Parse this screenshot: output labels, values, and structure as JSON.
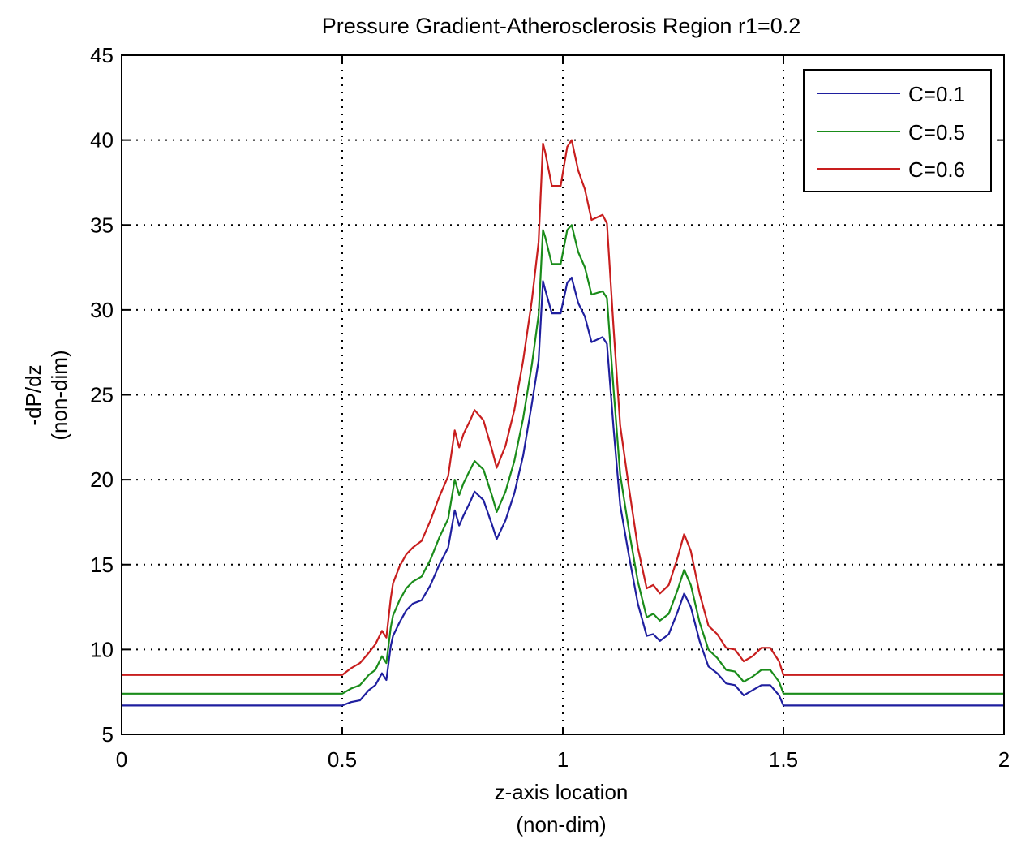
{
  "chart_data": {
    "type": "line",
    "title": "Pressure Gradient-Atherosclerosis Region r1=0.2",
    "xlabel": [
      "z-axis location",
      "(non-dim)"
    ],
    "ylabel": [
      "-dP/dz",
      "(non-dim)"
    ],
    "xlim": [
      0,
      2
    ],
    "ylim": [
      5,
      45
    ],
    "xticks": [
      0,
      0.5,
      1,
      1.5,
      2
    ],
    "xtick_labels": [
      "0",
      "0.5",
      "1",
      "1.5",
      "2"
    ],
    "yticks": [
      5,
      10,
      15,
      20,
      25,
      30,
      35,
      40,
      45
    ],
    "ytick_labels": [
      "5",
      "10",
      "15",
      "20",
      "25",
      "30",
      "35",
      "40",
      "45"
    ],
    "grid": true,
    "legend_position": "top-right",
    "series": [
      {
        "name": "C=0.1",
        "color": "#1f1f9f",
        "points": [
          [
            0,
            6.7
          ],
          [
            0.5,
            6.7
          ],
          [
            0.52,
            6.9
          ],
          [
            0.54,
            7.0
          ],
          [
            0.56,
            7.6
          ],
          [
            0.575,
            7.9
          ],
          [
            0.59,
            8.6
          ],
          [
            0.6,
            8.2
          ],
          [
            0.61,
            10.2
          ],
          [
            0.615,
            10.8
          ],
          [
            0.63,
            11.6
          ],
          [
            0.645,
            12.3
          ],
          [
            0.66,
            12.7
          ],
          [
            0.68,
            12.9
          ],
          [
            0.7,
            13.8
          ],
          [
            0.72,
            15.0
          ],
          [
            0.74,
            16.0
          ],
          [
            0.755,
            18.2
          ],
          [
            0.765,
            17.3
          ],
          [
            0.775,
            17.9
          ],
          [
            0.79,
            18.7
          ],
          [
            0.8,
            19.3
          ],
          [
            0.82,
            18.8
          ],
          [
            0.84,
            17.3
          ],
          [
            0.85,
            16.5
          ],
          [
            0.87,
            17.6
          ],
          [
            0.89,
            19.2
          ],
          [
            0.91,
            21.4
          ],
          [
            0.93,
            24.5
          ],
          [
            0.945,
            27.0
          ],
          [
            0.955,
            31.7
          ],
          [
            0.96,
            31.2
          ],
          [
            0.975,
            29.8
          ],
          [
            0.995,
            29.8
          ],
          [
            1.01,
            31.6
          ],
          [
            1.02,
            31.9
          ],
          [
            1.035,
            30.4
          ],
          [
            1.05,
            29.6
          ],
          [
            1.065,
            28.1
          ],
          [
            1.09,
            28.4
          ],
          [
            1.1,
            28.0
          ],
          [
            1.115,
            23.0
          ],
          [
            1.13,
            18.5
          ],
          [
            1.15,
            15.5
          ],
          [
            1.17,
            12.7
          ],
          [
            1.19,
            10.8
          ],
          [
            1.205,
            10.9
          ],
          [
            1.22,
            10.5
          ],
          [
            1.24,
            10.9
          ],
          [
            1.26,
            12.2
          ],
          [
            1.275,
            13.3
          ],
          [
            1.29,
            12.5
          ],
          [
            1.31,
            10.5
          ],
          [
            1.33,
            9.0
          ],
          [
            1.35,
            8.6
          ],
          [
            1.37,
            8.0
          ],
          [
            1.39,
            7.9
          ],
          [
            1.41,
            7.3
          ],
          [
            1.43,
            7.6
          ],
          [
            1.45,
            7.9
          ],
          [
            1.47,
            7.9
          ],
          [
            1.49,
            7.3
          ],
          [
            1.5,
            6.7
          ],
          [
            2,
            6.7
          ]
        ]
      },
      {
        "name": "C=0.5",
        "color": "#1a8c1a",
        "points": [
          [
            0,
            7.4
          ],
          [
            0.5,
            7.4
          ],
          [
            0.52,
            7.7
          ],
          [
            0.54,
            7.9
          ],
          [
            0.56,
            8.5
          ],
          [
            0.575,
            8.8
          ],
          [
            0.59,
            9.6
          ],
          [
            0.6,
            9.2
          ],
          [
            0.61,
            11.3
          ],
          [
            0.615,
            12.0
          ],
          [
            0.63,
            12.9
          ],
          [
            0.645,
            13.6
          ],
          [
            0.66,
            14.0
          ],
          [
            0.68,
            14.3
          ],
          [
            0.7,
            15.3
          ],
          [
            0.72,
            16.6
          ],
          [
            0.74,
            17.7
          ],
          [
            0.755,
            20.0
          ],
          [
            0.765,
            19.1
          ],
          [
            0.775,
            19.8
          ],
          [
            0.79,
            20.6
          ],
          [
            0.8,
            21.1
          ],
          [
            0.82,
            20.6
          ],
          [
            0.84,
            19.0
          ],
          [
            0.85,
            18.1
          ],
          [
            0.87,
            19.3
          ],
          [
            0.89,
            21.1
          ],
          [
            0.91,
            23.6
          ],
          [
            0.93,
            26.8
          ],
          [
            0.945,
            29.7
          ],
          [
            0.955,
            34.7
          ],
          [
            0.96,
            34.3
          ],
          [
            0.975,
            32.7
          ],
          [
            0.995,
            32.7
          ],
          [
            1.01,
            34.7
          ],
          [
            1.02,
            35.0
          ],
          [
            1.035,
            33.4
          ],
          [
            1.05,
            32.5
          ],
          [
            1.065,
            30.9
          ],
          [
            1.09,
            31.1
          ],
          [
            1.1,
            30.7
          ],
          [
            1.115,
            25.3
          ],
          [
            1.13,
            20.3
          ],
          [
            1.15,
            17.0
          ],
          [
            1.17,
            14.0
          ],
          [
            1.19,
            11.9
          ],
          [
            1.205,
            12.1
          ],
          [
            1.22,
            11.7
          ],
          [
            1.24,
            12.1
          ],
          [
            1.26,
            13.5
          ],
          [
            1.275,
            14.7
          ],
          [
            1.29,
            13.8
          ],
          [
            1.31,
            11.6
          ],
          [
            1.33,
            10.0
          ],
          [
            1.35,
            9.5
          ],
          [
            1.37,
            8.8
          ],
          [
            1.39,
            8.7
          ],
          [
            1.41,
            8.1
          ],
          [
            1.43,
            8.4
          ],
          [
            1.45,
            8.8
          ],
          [
            1.47,
            8.8
          ],
          [
            1.49,
            8.1
          ],
          [
            1.5,
            7.4
          ],
          [
            2,
            7.4
          ]
        ]
      },
      {
        "name": "C=0.6",
        "color": "#c81e1e",
        "points": [
          [
            0,
            8.5
          ],
          [
            0.5,
            8.5
          ],
          [
            0.52,
            8.9
          ],
          [
            0.54,
            9.2
          ],
          [
            0.56,
            9.8
          ],
          [
            0.575,
            10.3
          ],
          [
            0.59,
            11.1
          ],
          [
            0.6,
            10.7
          ],
          [
            0.61,
            13.0
          ],
          [
            0.615,
            13.9
          ],
          [
            0.63,
            14.9
          ],
          [
            0.645,
            15.6
          ],
          [
            0.66,
            16.0
          ],
          [
            0.68,
            16.4
          ],
          [
            0.7,
            17.6
          ],
          [
            0.72,
            19.0
          ],
          [
            0.74,
            20.2
          ],
          [
            0.755,
            22.9
          ],
          [
            0.765,
            21.9
          ],
          [
            0.775,
            22.7
          ],
          [
            0.79,
            23.5
          ],
          [
            0.8,
            24.1
          ],
          [
            0.82,
            23.5
          ],
          [
            0.84,
            21.7
          ],
          [
            0.85,
            20.7
          ],
          [
            0.87,
            22.0
          ],
          [
            0.89,
            24.1
          ],
          [
            0.91,
            27.0
          ],
          [
            0.93,
            30.6
          ],
          [
            0.945,
            34.0
          ],
          [
            0.955,
            39.8
          ],
          [
            0.96,
            39.3
          ],
          [
            0.975,
            37.3
          ],
          [
            0.995,
            37.3
          ],
          [
            1.01,
            39.6
          ],
          [
            1.02,
            40.0
          ],
          [
            1.035,
            38.2
          ],
          [
            1.05,
            37.1
          ],
          [
            1.065,
            35.3
          ],
          [
            1.09,
            35.6
          ],
          [
            1.1,
            35.1
          ],
          [
            1.115,
            28.9
          ],
          [
            1.13,
            23.2
          ],
          [
            1.15,
            19.5
          ],
          [
            1.17,
            16.0
          ],
          [
            1.19,
            13.6
          ],
          [
            1.205,
            13.8
          ],
          [
            1.22,
            13.3
          ],
          [
            1.24,
            13.8
          ],
          [
            1.26,
            15.4
          ],
          [
            1.275,
            16.8
          ],
          [
            1.29,
            15.8
          ],
          [
            1.31,
            13.3
          ],
          [
            1.33,
            11.4
          ],
          [
            1.35,
            10.9
          ],
          [
            1.37,
            10.1
          ],
          [
            1.39,
            10.0
          ],
          [
            1.41,
            9.3
          ],
          [
            1.43,
            9.6
          ],
          [
            1.45,
            10.1
          ],
          [
            1.47,
            10.1
          ],
          [
            1.49,
            9.3
          ],
          [
            1.5,
            8.5
          ],
          [
            2,
            8.5
          ]
        ]
      }
    ]
  }
}
